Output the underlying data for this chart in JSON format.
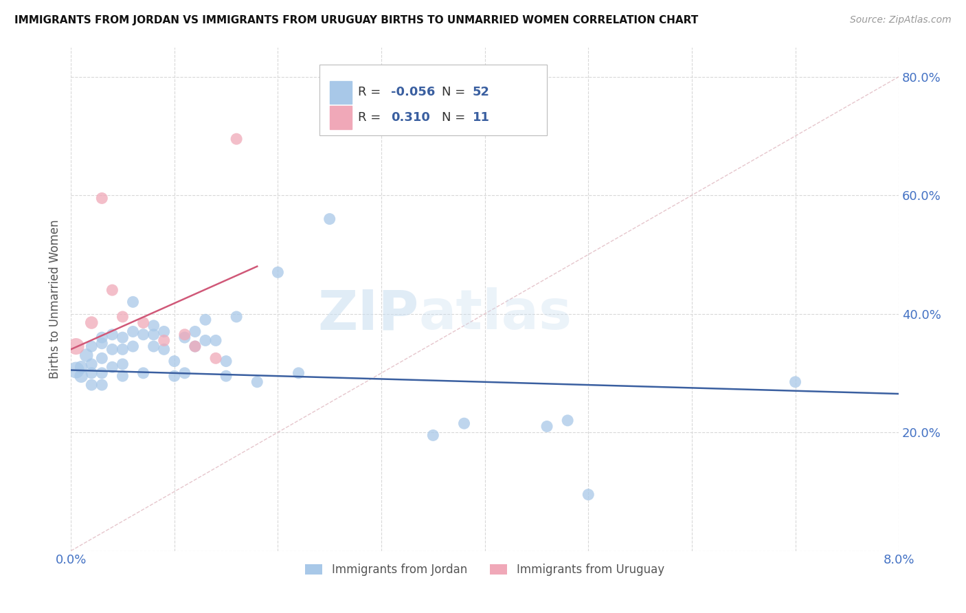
{
  "title": "IMMIGRANTS FROM JORDAN VS IMMIGRANTS FROM URUGUAY BIRTHS TO UNMARRIED WOMEN CORRELATION CHART",
  "source": "Source: ZipAtlas.com",
  "ylabel": "Births to Unmarried Women",
  "x_lim": [
    0.0,
    0.08
  ],
  "y_lim": [
    0.0,
    0.85
  ],
  "jordan_r": "-0.056",
  "jordan_n": "52",
  "uruguay_r": "0.310",
  "uruguay_n": "11",
  "jordan_color": "#a8c8e8",
  "jordan_line_color": "#3a5fa0",
  "uruguay_color": "#f0a8b8",
  "uruguay_line_color": "#d05878",
  "diagonal_color": "#e0b8c0",
  "watermark_zip": "ZIP",
  "watermark_atlas": "atlas",
  "jordan_points_x": [
    0.0005,
    0.001,
    0.001,
    0.0015,
    0.002,
    0.002,
    0.002,
    0.002,
    0.003,
    0.003,
    0.003,
    0.003,
    0.003,
    0.004,
    0.004,
    0.004,
    0.005,
    0.005,
    0.005,
    0.005,
    0.006,
    0.006,
    0.006,
    0.007,
    0.007,
    0.008,
    0.008,
    0.008,
    0.009,
    0.009,
    0.01,
    0.01,
    0.011,
    0.011,
    0.012,
    0.012,
    0.013,
    0.013,
    0.014,
    0.015,
    0.015,
    0.016,
    0.018,
    0.02,
    0.022,
    0.025,
    0.035,
    0.038,
    0.046,
    0.048,
    0.05,
    0.07
  ],
  "jordan_points_y": [
    0.305,
    0.295,
    0.31,
    0.33,
    0.315,
    0.345,
    0.3,
    0.28,
    0.36,
    0.35,
    0.325,
    0.3,
    0.28,
    0.365,
    0.34,
    0.31,
    0.36,
    0.34,
    0.315,
    0.295,
    0.42,
    0.37,
    0.345,
    0.365,
    0.3,
    0.38,
    0.365,
    0.345,
    0.37,
    0.34,
    0.32,
    0.295,
    0.36,
    0.3,
    0.37,
    0.345,
    0.39,
    0.355,
    0.355,
    0.32,
    0.295,
    0.395,
    0.285,
    0.47,
    0.3,
    0.56,
    0.195,
    0.215,
    0.21,
    0.22,
    0.095,
    0.285
  ],
  "jordan_sizes": [
    300,
    200,
    180,
    200,
    150,
    150,
    150,
    150,
    150,
    150,
    150,
    150,
    150,
    150,
    150,
    150,
    150,
    150,
    150,
    150,
    150,
    150,
    150,
    150,
    150,
    150,
    150,
    150,
    150,
    150,
    150,
    150,
    150,
    150,
    150,
    150,
    150,
    150,
    150,
    150,
    150,
    150,
    150,
    150,
    150,
    150,
    150,
    150,
    150,
    150,
    150,
    150
  ],
  "uruguay_points_x": [
    0.0005,
    0.002,
    0.003,
    0.004,
    0.005,
    0.007,
    0.009,
    0.011,
    0.012,
    0.014,
    0.016
  ],
  "uruguay_points_y": [
    0.345,
    0.385,
    0.595,
    0.44,
    0.395,
    0.385,
    0.355,
    0.365,
    0.345,
    0.325,
    0.695
  ],
  "uruguay_sizes": [
    300,
    180,
    150,
    150,
    150,
    150,
    150,
    150,
    150,
    150,
    150
  ],
  "jordan_trend_x": [
    0.0,
    0.08
  ],
  "jordan_trend_y": [
    0.305,
    0.265
  ],
  "uruguay_trend_x": [
    0.0,
    0.018
  ],
  "uruguay_trend_y": [
    0.34,
    0.48
  ]
}
